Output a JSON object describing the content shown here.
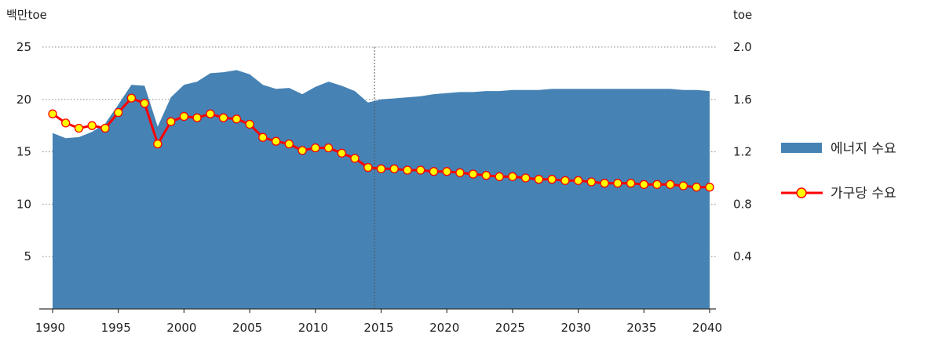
{
  "chart_data": {
    "type": "area",
    "title": "",
    "y_left": {
      "label": "백만toe",
      "range": [
        0,
        25
      ],
      "ticks": [
        "5",
        "10",
        "15",
        "20",
        "25"
      ],
      "tick_values": [
        5,
        10,
        15,
        20,
        25
      ]
    },
    "y_right": {
      "label": "toe",
      "range": [
        0,
        2.0
      ],
      "ticks": [
        "0.4",
        "0.8",
        "1.2",
        "1.6",
        "2.0"
      ],
      "tick_values": [
        0.4,
        0.8,
        1.2,
        1.6,
        2.0
      ]
    },
    "x_axis": {
      "range": [
        1990,
        2040
      ],
      "ticks": [
        "1990",
        "1995",
        "2000",
        "2005",
        "2010",
        "2015",
        "2020",
        "2025",
        "2030",
        "2035",
        "2040"
      ],
      "tick_values": [
        1990,
        1995,
        2000,
        2005,
        2010,
        2015,
        2020,
        2025,
        2030,
        2035,
        2040
      ]
    },
    "grid": true,
    "legend": "right",
    "reference_line_x": 2014.5,
    "x": [
      1990,
      1991,
      1992,
      1993,
      1994,
      1995,
      1996,
      1997,
      1998,
      1999,
      2000,
      2001,
      2002,
      2003,
      2004,
      2005,
      2006,
      2007,
      2008,
      2009,
      2010,
      2011,
      2012,
      2013,
      2014,
      2015,
      2016,
      2017,
      2018,
      2019,
      2020,
      2021,
      2022,
      2023,
      2024,
      2025,
      2026,
      2027,
      2028,
      2029,
      2030,
      2031,
      2032,
      2033,
      2034,
      2035,
      2036,
      2037,
      2038,
      2039,
      2040
    ],
    "series": [
      {
        "name": "에너지 수요",
        "type": "area",
        "axis": "left",
        "color": "#4682b4",
        "values": [
          16.8,
          16.3,
          16.4,
          16.9,
          17.7,
          19.5,
          21.4,
          21.3,
          17.4,
          20.2,
          21.4,
          21.7,
          22.5,
          22.6,
          22.8,
          22.4,
          21.4,
          21.0,
          21.1,
          20.5,
          21.2,
          21.7,
          21.3,
          20.8,
          19.7,
          20.0,
          20.1,
          20.2,
          20.3,
          20.5,
          20.6,
          20.7,
          20.7,
          20.8,
          20.8,
          20.9,
          20.9,
          20.9,
          21.0,
          21.0,
          21.0,
          21.0,
          21.0,
          21.0,
          21.0,
          21.0,
          21.0,
          21.0,
          20.9,
          20.9,
          20.8
        ]
      },
      {
        "name": "가구당 수요",
        "type": "line",
        "axis": "right",
        "color": "#ff0000",
        "marker_fill": "#ffff00",
        "values": [
          1.49,
          1.42,
          1.38,
          1.4,
          1.38,
          1.5,
          1.61,
          1.57,
          1.26,
          1.43,
          1.47,
          1.46,
          1.49,
          1.46,
          1.45,
          1.41,
          1.31,
          1.28,
          1.26,
          1.21,
          1.23,
          1.23,
          1.19,
          1.15,
          1.08,
          1.07,
          1.07,
          1.06,
          1.06,
          1.05,
          1.05,
          1.04,
          1.03,
          1.02,
          1.01,
          1.01,
          1.0,
          0.99,
          0.99,
          0.98,
          0.98,
          0.97,
          0.96,
          0.96,
          0.96,
          0.95,
          0.95,
          0.95,
          0.94,
          0.93,
          0.93
        ]
      }
    ]
  }
}
